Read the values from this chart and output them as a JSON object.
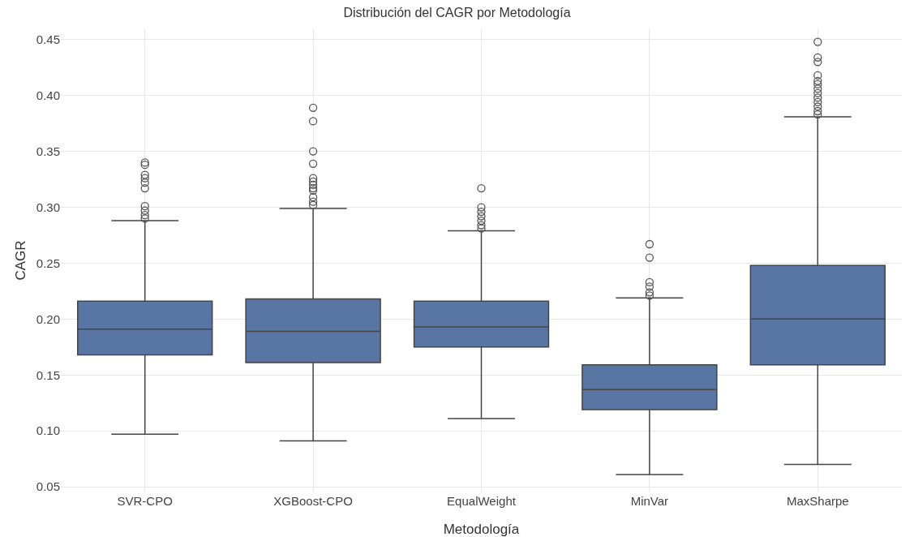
{
  "chart_data": {
    "type": "box",
    "title": "Distribución del CAGR por Metodología",
    "xlabel": "Metodología",
    "ylabel": "CAGR",
    "categories": [
      "SVR-CPO",
      "XGBoost-CPO",
      "EqualWeight",
      "MinVar",
      "MaxSharpe"
    ],
    "color": "#5875a4",
    "boxes": [
      {
        "low": 0.097,
        "q1": 0.168,
        "median": 0.191,
        "q3": 0.216,
        "high": 0.288,
        "outliers": [
          0.34,
          0.338,
          0.329,
          0.326,
          0.322,
          0.317,
          0.301,
          0.297,
          0.293,
          0.29
        ]
      },
      {
        "low": 0.091,
        "q1": 0.161,
        "median": 0.189,
        "q3": 0.218,
        "high": 0.299,
        "outliers": [
          0.389,
          0.377,
          0.35,
          0.339,
          0.326,
          0.323,
          0.32,
          0.317,
          0.315,
          0.309,
          0.305,
          0.302
        ]
      },
      {
        "low": 0.111,
        "q1": 0.175,
        "median": 0.193,
        "q3": 0.216,
        "high": 0.279,
        "outliers": [
          0.317,
          0.3,
          0.296,
          0.292,
          0.288,
          0.284,
          0.281
        ]
      },
      {
        "low": 0.061,
        "q1": 0.119,
        "median": 0.137,
        "q3": 0.159,
        "high": 0.219,
        "outliers": [
          0.267,
          0.255,
          0.233,
          0.229,
          0.224,
          0.221
        ]
      },
      {
        "low": 0.07,
        "q1": 0.159,
        "median": 0.2,
        "q3": 0.248,
        "high": 0.381,
        "outliers": [
          0.448,
          0.434,
          0.43,
          0.418,
          0.413,
          0.41,
          0.406,
          0.402,
          0.398,
          0.394,
          0.39,
          0.386,
          0.383
        ]
      }
    ],
    "ylim": [
      0.045,
      0.46
    ],
    "yticks": [
      0.05,
      {
        "value": 0.1,
        "label": "0.10"
      },
      0.15,
      {
        "value": 0.2,
        "label": "0.20"
      },
      0.25,
      {
        "value": 0.3,
        "label": "0.30"
      },
      0.35,
      {
        "value": 0.4,
        "label": "0.40"
      },
      0.45
    ],
    "grid": true
  }
}
